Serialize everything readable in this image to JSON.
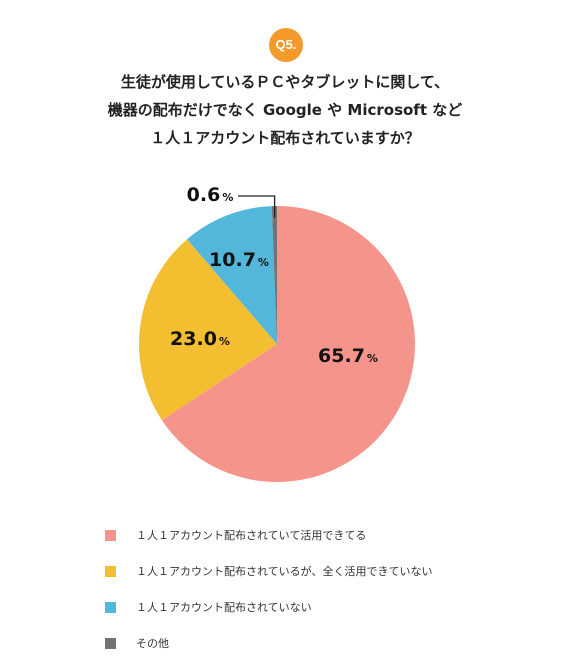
{
  "badge": "Q5.",
  "question": {
    "lines": [
      "生徒が使用しているＰＣやタブレットに関して、",
      "機器の配布だけでなく Google や Microsoft など",
      "１人１アカウント配布されていますか？"
    ]
  },
  "chart_data": {
    "type": "pie",
    "title": "",
    "unit": "%",
    "start_angle_deg": 0,
    "direction": "clockwise",
    "slices": [
      {
        "label": "１人１アカウント配布されていて活用できてる",
        "value": 65.7,
        "value_text": "65.7",
        "color": "#f4948b"
      },
      {
        "label": "１人１アカウント配布されているが、全く活用できていない",
        "value": 23.0,
        "value_text": "23.0",
        "color": "#f4be31"
      },
      {
        "label": "１人１アカウント配布されていない",
        "value": 10.7,
        "value_text": "10.7",
        "color": "#52b7da"
      },
      {
        "label": "その他",
        "value": 0.6,
        "value_text": "0.6",
        "color": "#737373"
      }
    ]
  }
}
